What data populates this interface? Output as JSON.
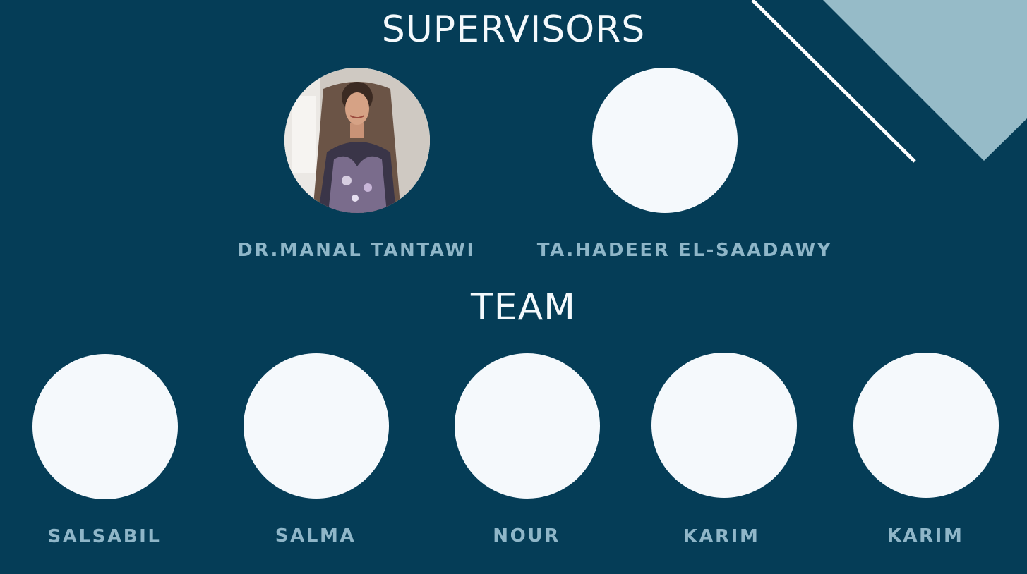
{
  "slide": {
    "colors": {
      "background": "#053d57",
      "heading": "#f4f9fc",
      "name": "#8fb6c8",
      "photo_placeholder": "#f5f9fc",
      "corner_triangle": "#96bbc8",
      "corner_line": "#ffffff"
    }
  },
  "supervisors": {
    "title": "SUPERVISORS",
    "people": [
      {
        "name": "DR.MANAL TANTAWI",
        "has_photo": true
      },
      {
        "name": "TA.HADEER EL-SAADAWY",
        "has_photo": false
      }
    ]
  },
  "team": {
    "title": "TEAM",
    "members": [
      {
        "name": "SALSABIL"
      },
      {
        "name": "SALMA"
      },
      {
        "name": "NOUR"
      },
      {
        "name": "KARIM"
      },
      {
        "name": "KARIM"
      }
    ]
  }
}
